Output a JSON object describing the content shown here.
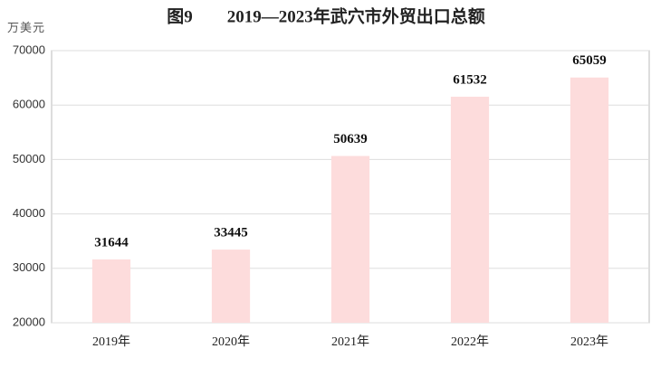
{
  "chart_data": {
    "type": "bar",
    "title": "图9　　2019—2023年武穴市外贸出口总额",
    "y_label": "万美元",
    "categories": [
      "2019年",
      "2020年",
      "2021年",
      "2022年",
      "2023年"
    ],
    "values": [
      31644,
      33445,
      50639,
      61532,
      65059
    ],
    "color": "#fddcdc",
    "ylim": [
      20000,
      70000
    ],
    "yticks": [
      20000,
      30000,
      40000,
      50000,
      60000,
      70000
    ],
    "grid": true
  }
}
